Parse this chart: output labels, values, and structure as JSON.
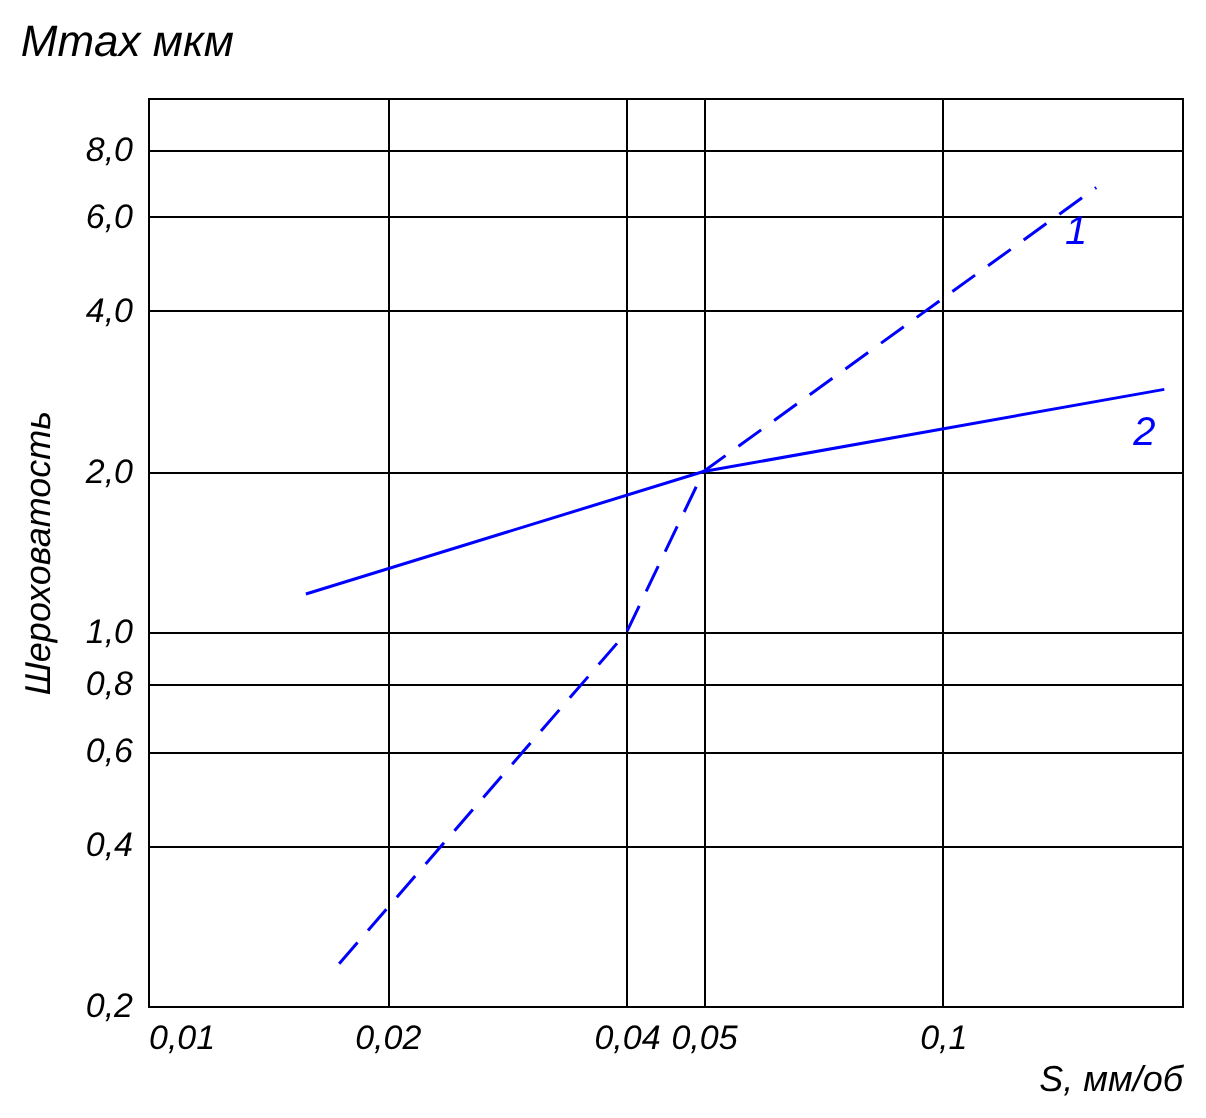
{
  "chart_data": {
    "type": "line",
    "title": "Mmax мкм",
    "xlabel": "S, мм/об",
    "ylabel": "Шероховатость",
    "log": "xy",
    "grid": true,
    "legend": false,
    "xlim": [
      0.01,
      0.2
    ],
    "xticks": [
      {
        "value": 0.01,
        "label": "0,01"
      },
      {
        "value": 0.02,
        "label": "0,02"
      },
      {
        "value": 0.04,
        "label": "0,04"
      },
      {
        "value": 0.05,
        "label": "0,05"
      },
      {
        "value": 0.1,
        "label": "0,1"
      }
    ],
    "ylim": [
      0.2,
      10
    ],
    "yticks": [
      {
        "value": 0.2,
        "label": "0,2"
      },
      {
        "value": 0.4,
        "label": "0,4"
      },
      {
        "value": 0.6,
        "label": "0,6"
      },
      {
        "value": 0.8,
        "label": "0,8"
      },
      {
        "value": 1,
        "label": "1,0"
      },
      {
        "value": 2,
        "label": "2,0"
      },
      {
        "value": 4,
        "label": "4,0"
      },
      {
        "value": 6,
        "label": "6,0"
      },
      {
        "value": 8,
        "label": "8,0"
      }
    ],
    "series": [
      {
        "name": "1",
        "color": "#0000ff",
        "line_style": "dashed",
        "x": [
          0.0174,
          0.04,
          0.05,
          0.156
        ],
        "values": [
          0.24,
          1.0,
          2.0,
          6.8
        ]
      },
      {
        "name": "2",
        "color": "#0000ff",
        "line_style": "solid",
        "x": [
          0.0158,
          0.05,
          0.19
        ],
        "values": [
          1.18,
          2.0,
          2.85
        ]
      }
    ]
  }
}
